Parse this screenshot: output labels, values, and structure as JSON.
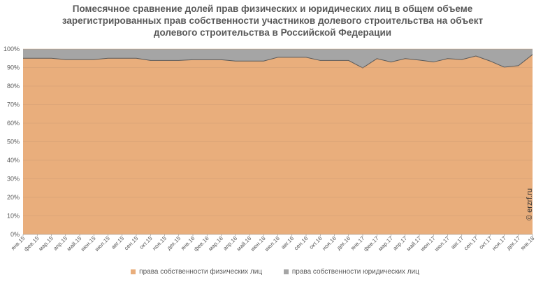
{
  "chart_data": {
    "type": "area",
    "stacked": true,
    "percent": true,
    "title_lines": [
      "Помесячное сравнение долей прав физических и юридических лиц в общем объеме",
      "зарегистрированных прав собственности участников долевого строительства на объект",
      "долевого строительства в Российской Федерации"
    ],
    "y_ticks": [
      "0%",
      "10%",
      "20%",
      "30%",
      "40%",
      "50%",
      "60%",
      "70%",
      "80%",
      "90%",
      "100%"
    ],
    "ylim": [
      0,
      100
    ],
    "grid": true,
    "legend_position": "bottom",
    "categories": [
      "янв.15",
      "фев.15",
      "мар.15",
      "апр.15",
      "май.15",
      "июн.15",
      "июл.15",
      "авг.15",
      "сен.15",
      "окт.15",
      "ноя.15",
      "дек.15",
      "янв.16",
      "фев.16",
      "мар.16",
      "апр.16",
      "май.16",
      "июн.16",
      "июл.16",
      "авг.16",
      "сен.16",
      "окт.16",
      "ноя.16",
      "дек.16",
      "янв.17",
      "фев.17",
      "мар.17",
      "апр.17",
      "май.17",
      "июн.17",
      "июл.17",
      "авг.17",
      "сен.17",
      "окт.17",
      "ноя.17",
      "дек.17",
      "янв.18"
    ],
    "series": [
      {
        "name": "права собственности физических лиц",
        "color": "#e9ae7c",
        "values": [
          95,
          95,
          95,
          94.3,
          94.3,
          94.3,
          95,
          95,
          95,
          93.8,
          93.8,
          93.8,
          94.2,
          94.2,
          94.2,
          93.5,
          93.5,
          93.5,
          95.5,
          95.5,
          95.5,
          93.8,
          93.8,
          93.8,
          89.8,
          94.8,
          93,
          94.8,
          94,
          93,
          94.8,
          94.3,
          96.2,
          93.5,
          90.2,
          91,
          97
        ]
      },
      {
        "name": "права собственности юридических лиц",
        "color": "#a5a5a5",
        "values": [
          5,
          5,
          5,
          5.7,
          5.7,
          5.7,
          5,
          5,
          5,
          6.2,
          6.2,
          6.2,
          5.8,
          5.8,
          5.8,
          6.5,
          6.5,
          6.5,
          4.5,
          4.5,
          4.5,
          6.2,
          6.2,
          6.2,
          10.2,
          5.2,
          7,
          5.2,
          6,
          7,
          5.2,
          5.7,
          3.8,
          6.5,
          9.8,
          9,
          3
        ]
      }
    ]
  },
  "watermark": "© erzrf.ru"
}
